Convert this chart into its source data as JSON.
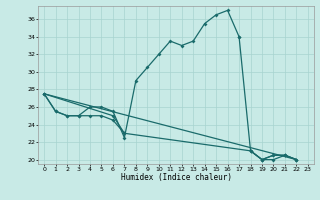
{
  "background_color": "#c8eae6",
  "grid_color": "#a8d4d0",
  "line_color": "#1a6b6b",
  "xlabel": "Humidex (Indice chaleur)",
  "xlim": [
    -0.5,
    23.5
  ],
  "ylim": [
    19.5,
    37.5
  ],
  "xticks": [
    0,
    1,
    2,
    3,
    4,
    5,
    6,
    7,
    8,
    9,
    10,
    11,
    12,
    13,
    14,
    15,
    16,
    17,
    18,
    19,
    20,
    21,
    22,
    23
  ],
  "yticks": [
    20,
    22,
    24,
    26,
    28,
    30,
    32,
    34,
    36
  ],
  "curve_main": {
    "x": [
      0,
      1,
      2,
      3,
      4,
      5,
      6,
      7,
      8,
      9,
      10,
      11,
      12,
      13,
      14,
      15,
      16,
      17
    ],
    "y": [
      27.5,
      25.5,
      25.0,
      25.0,
      26.0,
      26.0,
      25.5,
      22.5,
      29.0,
      30.5,
      32.0,
      33.5,
      33.0,
      33.5,
      35.5,
      36.5,
      37.0,
      34.0
    ]
  },
  "curve_drop": {
    "x": [
      17,
      18,
      19,
      20,
      21,
      22
    ],
    "y": [
      34.0,
      21.0,
      20.0,
      20.5,
      20.5,
      20.0
    ]
  },
  "curve_low": {
    "x": [
      0,
      1,
      2,
      3,
      4,
      5,
      6,
      7
    ],
    "y": [
      27.5,
      25.5,
      25.0,
      25.0,
      25.0,
      25.0,
      24.5,
      23.0
    ]
  },
  "curve_low2": {
    "x": [
      18,
      19,
      20,
      21,
      22
    ],
    "y": [
      21.0,
      20.0,
      20.5,
      20.5,
      20.0
    ]
  },
  "curve_straight1": {
    "x": [
      0,
      6,
      7,
      18,
      19,
      20,
      21,
      22
    ],
    "y": [
      27.5,
      25.0,
      23.0,
      21.0,
      20.0,
      20.0,
      20.5,
      20.0
    ]
  },
  "curve_straight2": {
    "x": [
      0,
      22
    ],
    "y": [
      27.5,
      20.0
    ]
  }
}
